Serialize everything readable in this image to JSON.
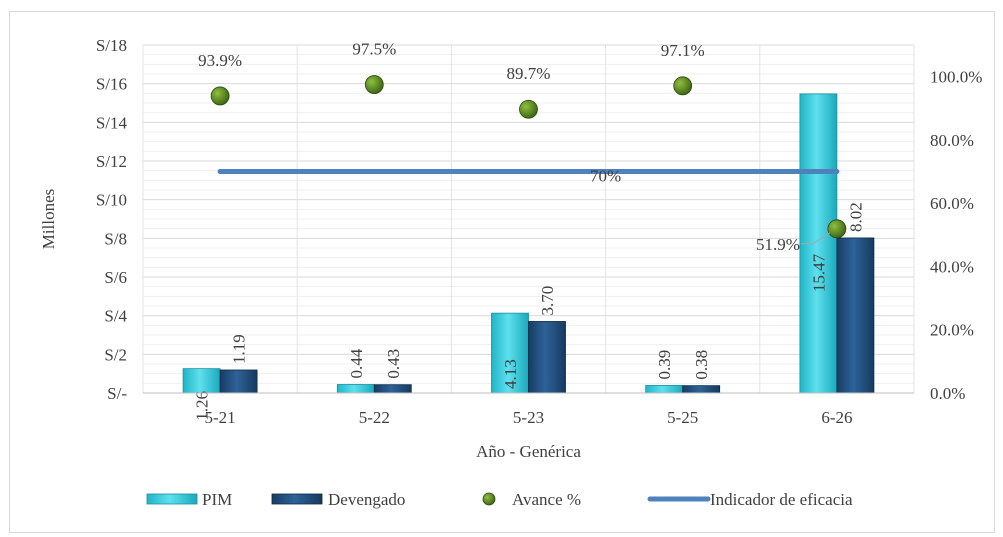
{
  "chart_data": {
    "type": "bar",
    "categories": [
      "5-21",
      "5-22",
      "5-23",
      "5-25",
      "6-26"
    ],
    "series": [
      {
        "name": "PIM",
        "type": "bar",
        "axis": "left",
        "values": [
          1.26,
          0.44,
          4.13,
          0.39,
          15.47
        ],
        "labels": [
          "1.26",
          "0.44",
          "4.13",
          "0.39",
          "15.47"
        ],
        "color": "#33c9d9"
      },
      {
        "name": "Devengado",
        "type": "bar",
        "axis": "left",
        "values": [
          1.19,
          0.43,
          3.7,
          0.38,
          8.02
        ],
        "labels": [
          "1.19",
          "0.43",
          "3.70",
          "0.38",
          "8.02"
        ],
        "color": "#1f4e79"
      },
      {
        "name": "Avance %",
        "type": "scatter",
        "axis": "right",
        "values": [
          93.9,
          97.5,
          89.7,
          97.1,
          51.9
        ],
        "labels": [
          "93.9%",
          "97.5%",
          "89.7%",
          "97.1%",
          "51.9%"
        ],
        "color": "#4e7a1c"
      },
      {
        "name": "Indicador de eficacia",
        "type": "line",
        "axis": "right",
        "values": [
          70,
          70,
          70,
          70,
          70
        ],
        "label": "70%",
        "color": "#4f81bd"
      }
    ],
    "xlabel": "Año - Genérica",
    "ylabel": "Millones",
    "ylim": [
      0,
      18
    ],
    "y2lim": [
      0,
      110
    ],
    "yticks": [
      0,
      2,
      4,
      6,
      8,
      10,
      12,
      14,
      16,
      18
    ],
    "ytick_labels": [
      "S/-",
      "S/2",
      "S/4",
      "S/6",
      "S/8",
      "S/10",
      "S/12",
      "S/14",
      "S/16",
      "S/18"
    ],
    "y2ticks": [
      0,
      20,
      40,
      60,
      80,
      100
    ],
    "y2tick_labels": [
      "0.0%",
      "20.0%",
      "40.0%",
      "60.0%",
      "80.0%",
      "100.0%"
    ],
    "grid": true,
    "legend_position": "bottom"
  }
}
